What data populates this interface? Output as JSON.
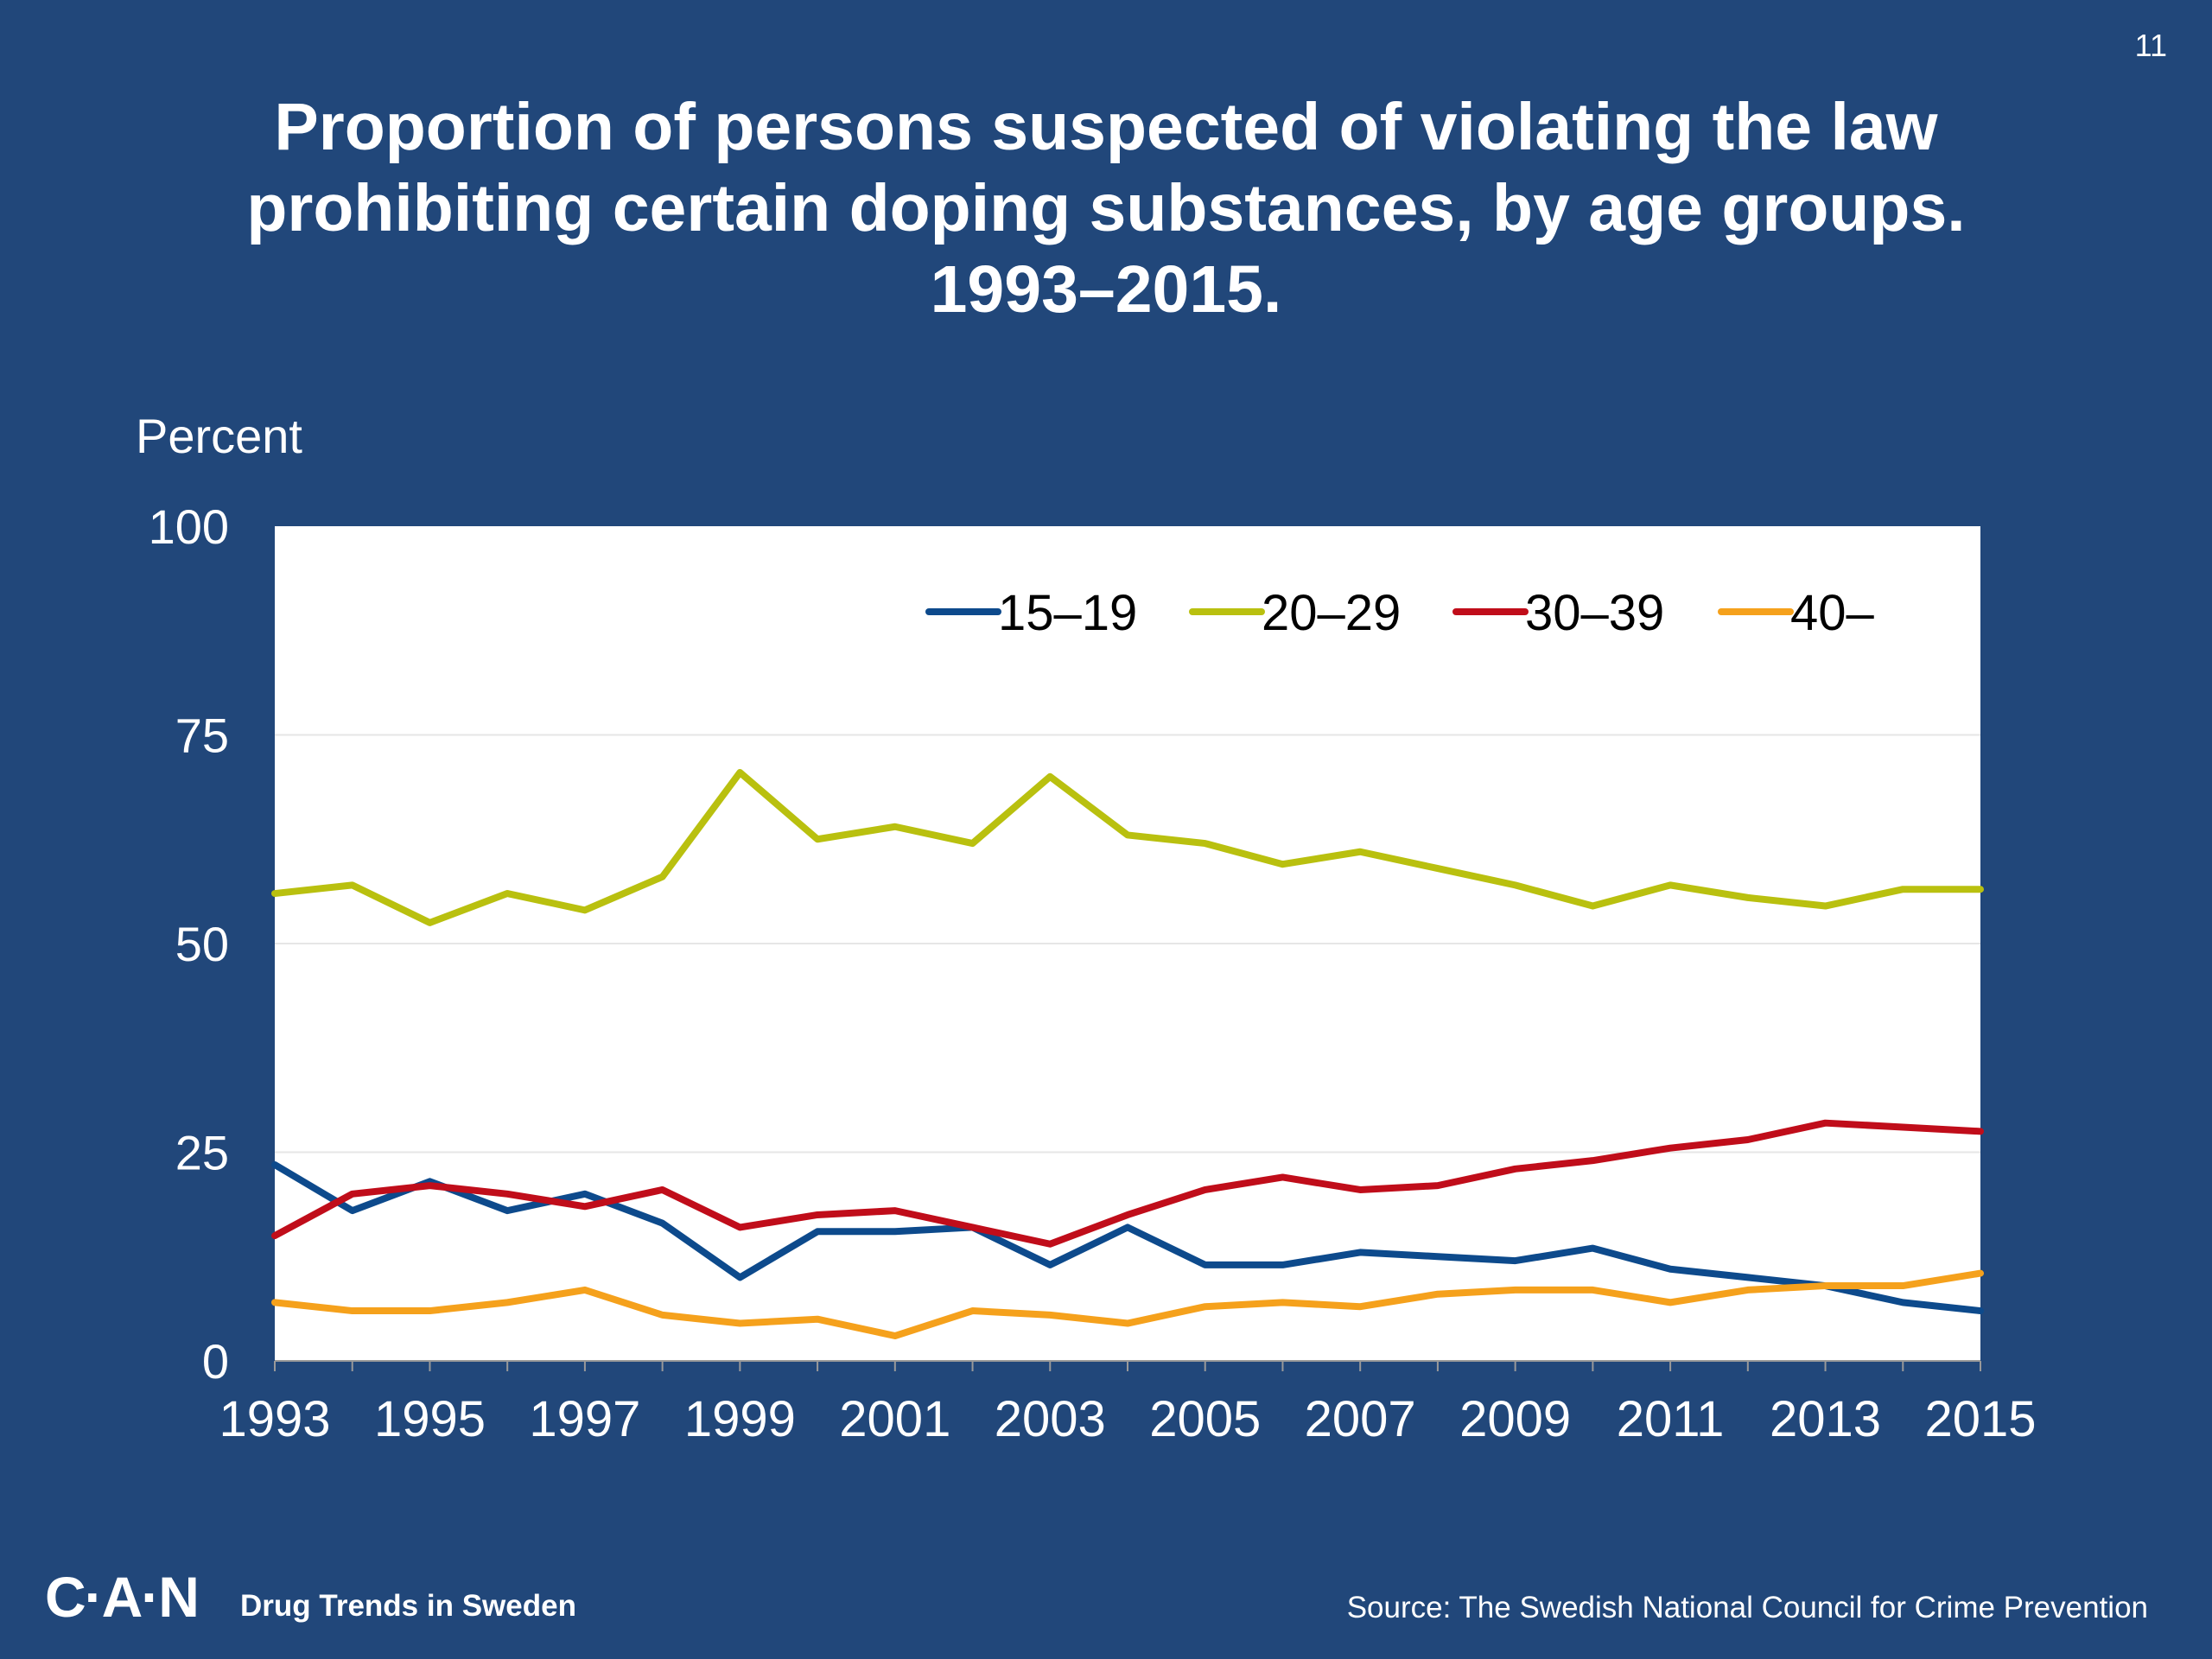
{
  "page_number": "11",
  "title_lines": [
    "Proportion of persons suspected of violating the law",
    "prohibiting certain doping substances, by age groups.",
    "1993–2015."
  ],
  "footer": {
    "logo": "C·A·N",
    "tagline": "Drug Trends in Sweden",
    "source": "Source: The Swedish National Council for Crime Prevention"
  },
  "chart_data": {
    "type": "line",
    "title": "Proportion of persons suspected of violating the law prohibiting certain doping substances, by age groups. 1993–2015.",
    "ylabel": "Percent",
    "xlabel": "",
    "x": [
      1993,
      1994,
      1995,
      1996,
      1997,
      1998,
      1999,
      2000,
      2001,
      2002,
      2003,
      2004,
      2005,
      2006,
      2007,
      2008,
      2009,
      2010,
      2011,
      2012,
      2013,
      2014,
      2015
    ],
    "x_tick_labels": [
      "1993",
      "1995",
      "1997",
      "1999",
      "2001",
      "2003",
      "2005",
      "2007",
      "2009",
      "2011",
      "2013",
      "2015"
    ],
    "ylim": [
      0,
      100
    ],
    "y_ticks": [
      0,
      25,
      50,
      75,
      100
    ],
    "grid": true,
    "legend_position": "top-right",
    "series": [
      {
        "name": "15–19",
        "color": "#0d4a8c",
        "values": [
          23.5,
          18,
          21.5,
          18,
          20,
          16.5,
          10,
          15.5,
          15.5,
          16,
          11.5,
          16,
          11.5,
          11.5,
          13,
          12.5,
          12,
          13.5,
          11,
          10,
          9,
          7,
          6
        ]
      },
      {
        "name": "20–29",
        "color": "#b9c00f",
        "values": [
          56,
          57,
          52.5,
          56,
          54,
          58,
          70.5,
          62.5,
          64,
          62,
          70,
          63,
          62,
          59.5,
          61,
          59,
          57,
          54.5,
          57,
          55.5,
          54.5,
          56.5,
          56.5
        ]
      },
      {
        "name": "30–39",
        "color": "#c00d1a",
        "values": [
          15,
          20,
          21,
          20,
          18.5,
          20.5,
          16,
          17.5,
          18,
          16,
          14,
          17.5,
          20.5,
          22,
          20.5,
          21,
          23,
          24,
          25.5,
          26.5,
          28.5,
          28,
          27.5
        ]
      },
      {
        "name": "40–",
        "color": "#f5a11c",
        "values": [
          7,
          6,
          6,
          7,
          8.5,
          5.5,
          4.5,
          5,
          3,
          6,
          5.5,
          4.5,
          6.5,
          7,
          6.5,
          8,
          8.5,
          8.5,
          7,
          8.5,
          9,
          9,
          10.5
        ]
      }
    ]
  }
}
